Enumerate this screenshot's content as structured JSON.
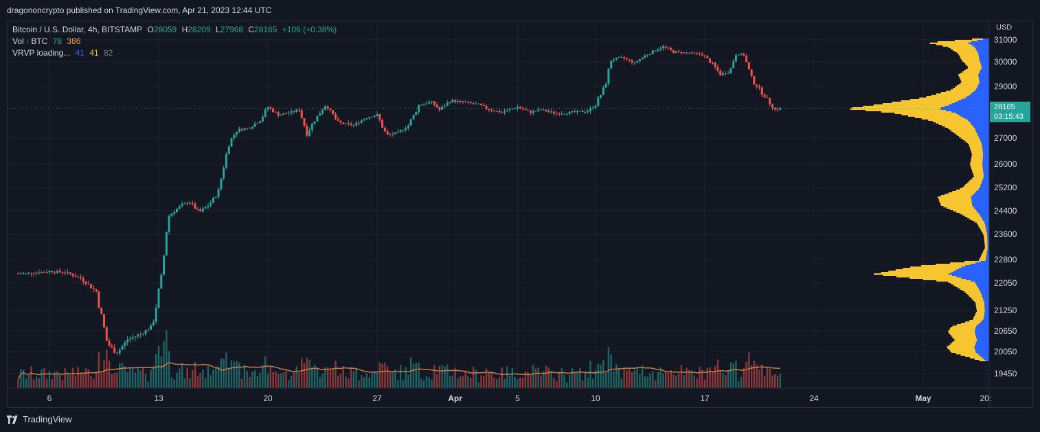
{
  "header": {
    "published": "dragononcrypto published on TradingView.com, Apr 21, 2023 12:44 UTC"
  },
  "legend": {
    "symbol": "Bitcoin / U.S. Dollar, 4h, BITSTAMP",
    "o_label": "O",
    "o": "28059",
    "h_label": "H",
    "h": "28209",
    "l_label": "L",
    "l": "27968",
    "c_label": "C",
    "c": "28165",
    "change": "+106 (+0.38%)",
    "vol_label": "Vol · BTC",
    "vol1": "78",
    "vol2": "386",
    "vrvp_label": "VRVP loading...",
    "vrvp1": "41",
    "vrvp2": "41",
    "vrvp3": "82"
  },
  "price_axis": {
    "currency": "USD",
    "last_price": "28165",
    "countdown": "03:15:43"
  },
  "footer": {
    "brand": "TradingView"
  },
  "colors": {
    "up": "#26a69a",
    "down": "#ef5350",
    "vrvp_up": "#2962ff",
    "vrvp_down": "#f7c530",
    "ma": "#c77b4a",
    "background": "#131722"
  },
  "chart_data": {
    "type": "candlestick",
    "timeframe": "4h",
    "y_ticks": [
      31000,
      30000,
      29000,
      27000,
      26000,
      25200,
      24400,
      23600,
      22800,
      22050,
      21250,
      20650,
      20050,
      19450
    ],
    "x_ticks": [
      {
        "label": "6",
        "day": 6
      },
      {
        "label": "13",
        "day": 13
      },
      {
        "label": "20",
        "day": 20
      },
      {
        "label": "27",
        "day": 27
      },
      {
        "label": "Apr",
        "day": 32
      },
      {
        "label": "5",
        "day": 36
      },
      {
        "label": "10",
        "day": 41
      },
      {
        "label": "17",
        "day": 48
      },
      {
        "label": "24",
        "day": 55
      },
      {
        "label": "May",
        "day": 62
      },
      {
        "label": "20:",
        "day": 66
      }
    ],
    "daily_closes": [
      {
        "day": 4.0,
        "close": 22350
      },
      {
        "day": 5.0,
        "close": 22380
      },
      {
        "day": 6.0,
        "close": 22420
      },
      {
        "day": 7.0,
        "close": 22400
      },
      {
        "day": 8.0,
        "close": 22200
      },
      {
        "day": 9.0,
        "close": 21800
      },
      {
        "day": 9.7,
        "close": 20300
      },
      {
        "day": 10.3,
        "close": 20000
      },
      {
        "day": 11.0,
        "close": 20400
      },
      {
        "day": 12.0,
        "close": 20600
      },
      {
        "day": 12.6,
        "close": 20800
      },
      {
        "day": 13.2,
        "close": 22300
      },
      {
        "day": 13.6,
        "close": 24200
      },
      {
        "day": 14.0,
        "close": 24400
      },
      {
        "day": 14.5,
        "close": 24600
      },
      {
        "day": 15.0,
        "close": 24700
      },
      {
        "day": 15.6,
        "close": 24350
      },
      {
        "day": 16.2,
        "close": 24600
      },
      {
        "day": 16.8,
        "close": 25000
      },
      {
        "day": 17.5,
        "close": 26800
      },
      {
        "day": 18.0,
        "close": 27300
      },
      {
        "day": 18.8,
        "close": 27400
      },
      {
        "day": 19.5,
        "close": 27700
      },
      {
        "day": 20.0,
        "close": 28200
      },
      {
        "day": 20.7,
        "close": 27900
      },
      {
        "day": 21.5,
        "close": 28000
      },
      {
        "day": 22.0,
        "close": 28100
      },
      {
        "day": 22.5,
        "close": 27200
      },
      {
        "day": 23.0,
        "close": 27700
      },
      {
        "day": 23.7,
        "close": 28300
      },
      {
        "day": 24.5,
        "close": 27600
      },
      {
        "day": 25.5,
        "close": 27500
      },
      {
        "day": 26.3,
        "close": 27800
      },
      {
        "day": 27.0,
        "close": 27900
      },
      {
        "day": 27.6,
        "close": 27100
      },
      {
        "day": 28.3,
        "close": 27200
      },
      {
        "day": 29.0,
        "close": 27500
      },
      {
        "day": 29.7,
        "close": 28300
      },
      {
        "day": 30.5,
        "close": 28400
      },
      {
        "day": 31.0,
        "close": 28100
      },
      {
        "day": 31.7,
        "close": 28450
      },
      {
        "day": 32.5,
        "close": 28400
      },
      {
        "day": 33.5,
        "close": 28300
      },
      {
        "day": 34.2,
        "close": 28100
      },
      {
        "day": 35.0,
        "close": 28000
      },
      {
        "day": 36.0,
        "close": 28200
      },
      {
        "day": 36.8,
        "close": 28000
      },
      {
        "day": 37.5,
        "close": 28100
      },
      {
        "day": 38.5,
        "close": 27950
      },
      {
        "day": 39.5,
        "close": 28000
      },
      {
        "day": 40.5,
        "close": 28050
      },
      {
        "day": 41.0,
        "close": 28300
      },
      {
        "day": 41.6,
        "close": 29000
      },
      {
        "day": 42.0,
        "close": 30100
      },
      {
        "day": 42.7,
        "close": 30200
      },
      {
        "day": 43.5,
        "close": 29950
      },
      {
        "day": 44.2,
        "close": 30300
      },
      {
        "day": 44.8,
        "close": 30500
      },
      {
        "day": 45.3,
        "close": 30700
      },
      {
        "day": 46.0,
        "close": 30450
      },
      {
        "day": 47.0,
        "close": 30400
      },
      {
        "day": 47.8,
        "close": 30350
      },
      {
        "day": 48.5,
        "close": 29900
      },
      {
        "day": 49.0,
        "close": 29500
      },
      {
        "day": 49.6,
        "close": 29600
      },
      {
        "day": 50.0,
        "close": 30400
      },
      {
        "day": 50.5,
        "close": 30300
      },
      {
        "day": 51.0,
        "close": 29300
      },
      {
        "day": 51.5,
        "close": 28900
      },
      {
        "day": 52.0,
        "close": 28500
      },
      {
        "day": 52.5,
        "close": 28100
      },
      {
        "day": 52.9,
        "close": 28165
      }
    ]
  }
}
